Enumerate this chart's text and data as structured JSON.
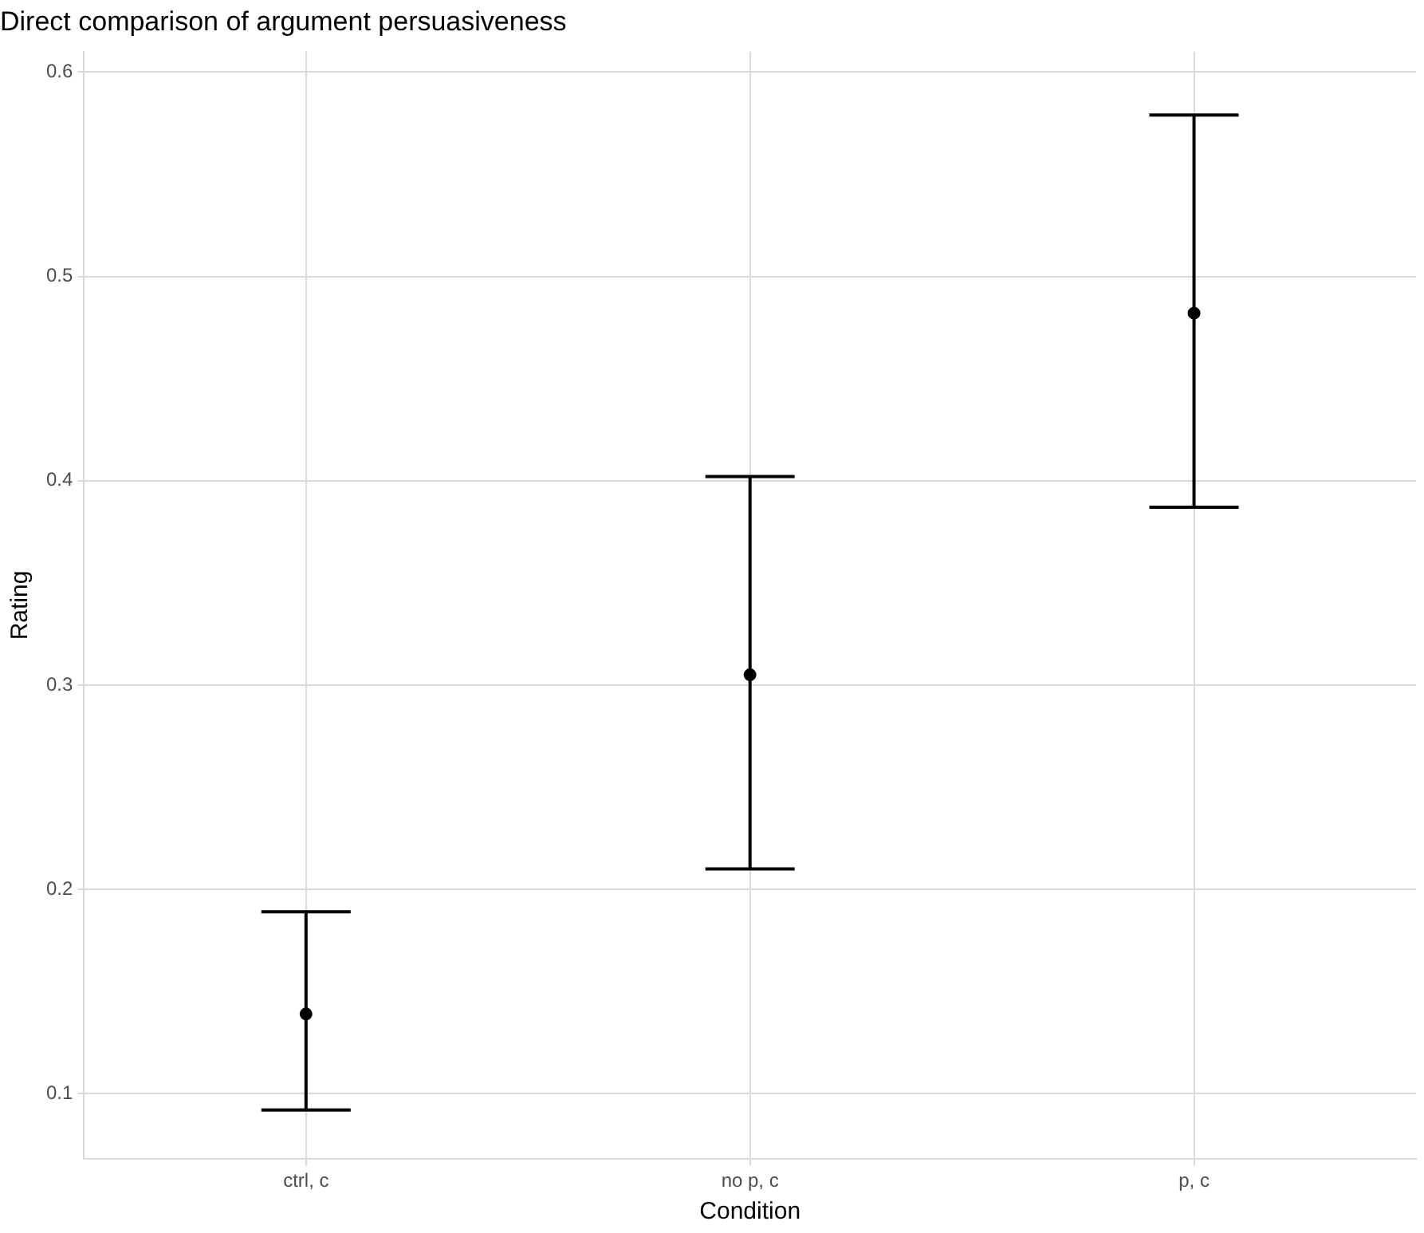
{
  "chart_data": {
    "type": "scatter",
    "title": "Direct comparison of argument persuasiveness",
    "xlabel": "Condition",
    "ylabel": "Rating",
    "categories": [
      "ctrl, c",
      "no p, c",
      "p, c"
    ],
    "series": [
      {
        "color": "#000000",
        "values": [
          0.139,
          0.305,
          0.482
        ],
        "errors": [
          [
            0.092,
            0.189
          ],
          [
            0.21,
            0.402
          ],
          [
            0.387,
            0.579
          ]
        ]
      }
    ],
    "ylim": [
      0.068,
      0.61
    ],
    "yticks": [
      0.1,
      0.2,
      0.3,
      0.4,
      0.5,
      0.6
    ],
    "grid": true,
    "legend": false,
    "marker": "circle"
  }
}
